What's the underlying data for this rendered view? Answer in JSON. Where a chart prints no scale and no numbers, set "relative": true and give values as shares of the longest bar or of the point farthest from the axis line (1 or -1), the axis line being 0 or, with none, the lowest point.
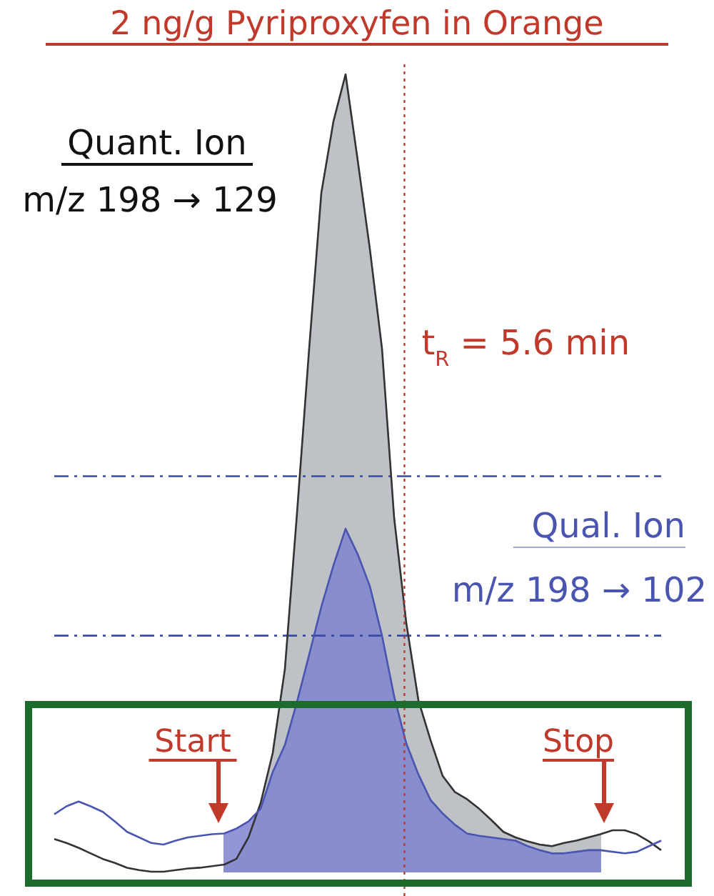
{
  "chart_data": {
    "type": "line",
    "title": "2 ng/g Pyriproxyfen in Orange",
    "relative": true,
    "categories": [
      null,
      null,
      null,
      null,
      null,
      null,
      null,
      null,
      null,
      null,
      null,
      null,
      null,
      null,
      null,
      null,
      null,
      null,
      null,
      null,
      null,
      null,
      null,
      null,
      null,
      null,
      null,
      null,
      null,
      null,
      null,
      null,
      null,
      null,
      null,
      null,
      null,
      null,
      null,
      null,
      null,
      null,
      null,
      null,
      null,
      null,
      null,
      null,
      null,
      null,
      null
    ],
    "series": [
      {
        "type": "area",
        "color": "#b3b7bb",
        "values": [
          null,
          null,
          null,
          null,
          null,
          null,
          null,
          null,
          null,
          null,
          null,
          null,
          null,
          null,
          0.009,
          0.016,
          0.043,
          0.086,
          0.149,
          0.254,
          0.45,
          0.656,
          0.851,
          0.941,
          1,
          0.892,
          0.781,
          0.656,
          0.444,
          0.312,
          0.215,
          0.165,
          0.12,
          0.1,
          0.091,
          0.079,
          0.065,
          0.05,
          0.043,
          0.038,
          0.034,
          0.032,
          0.036,
          0.039,
          0.043,
          0.047,
          null,
          null,
          null,
          null,
          null
        ]
      },
      {
        "type": "area",
        "color": "#7f84cf",
        "values": [
          null,
          null,
          null,
          null,
          null,
          null,
          null,
          null,
          null,
          null,
          null,
          null,
          null,
          null,
          0.048,
          0.054,
          0.063,
          0.079,
          0.125,
          0.159,
          0.213,
          0.272,
          0.332,
          0.384,
          0.43,
          0.398,
          0.358,
          0.296,
          0.22,
          0.161,
          0.122,
          0.09,
          0.073,
          0.059,
          0.048,
          0.045,
          0.043,
          0.041,
          0.039,
          0.032,
          0.027,
          0.023,
          0.023,
          0.025,
          0.027,
          0.027,
          null,
          null,
          null,
          null,
          null
        ]
      },
      {
        "color": "#3a4aa0",
        "line_style": "dashed",
        "values": [
          0.496,
          0.496,
          0.496,
          0.496,
          0.496,
          0.496,
          0.496,
          0.496,
          0.496,
          0.496,
          0.496,
          0.496,
          0.496,
          0.496,
          0.496,
          0.496,
          0.496,
          0.496,
          0.496,
          0.496,
          0.496,
          0.496,
          0.496,
          0.496,
          0.496,
          0.496,
          0.496,
          0.496,
          0.496,
          0.496,
          0.496,
          0.496,
          0.496,
          0.496,
          0.496,
          0.496,
          0.496,
          0.496,
          0.496,
          0.496,
          0.496,
          0.496,
          0.496,
          0.496,
          0.496,
          0.496,
          0.496,
          0.496,
          0.496,
          0.496,
          0.496
        ]
      },
      {
        "color": "#3a4aa0",
        "line_style": "dashed",
        "values": [
          0.296,
          0.296,
          0.296,
          0.296,
          0.296,
          0.296,
          0.296,
          0.296,
          0.296,
          0.296,
          0.296,
          0.296,
          0.296,
          0.296,
          0.296,
          0.296,
          0.296,
          0.296,
          0.296,
          0.296,
          0.296,
          0.296,
          0.296,
          0.296,
          0.296,
          0.296,
          0.296,
          0.296,
          0.296,
          0.296,
          0.296,
          0.296,
          0.296,
          0.296,
          0.296,
          0.296,
          0.296,
          0.296,
          0.296,
          0.296,
          0.296,
          0.296,
          0.296,
          0.296,
          0.296,
          0.296,
          0.296,
          0.296,
          0.296,
          0.296,
          0.296
        ]
      },
      {
        "name": "Quant. Ion",
        "color": "#333333",
        "values": [
          0.041,
          0.036,
          0.03,
          0.023,
          0.016,
          0.011,
          0.005,
          0.002,
          0,
          0,
          0.002,
          0.004,
          0.005,
          0.007,
          0.009,
          0.016,
          0.043,
          0.086,
          0.149,
          0.254,
          0.45,
          0.656,
          0.851,
          0.941,
          1,
          0.892,
          0.781,
          0.656,
          0.444,
          0.312,
          0.215,
          0.165,
          0.12,
          0.1,
          0.091,
          0.079,
          0.065,
          0.05,
          0.043,
          0.038,
          0.034,
          0.032,
          0.036,
          0.039,
          0.043,
          0.047,
          0.052,
          0.052,
          0.047,
          0.038,
          0.027
        ]
      },
      {
        "name": "Qual. Ion",
        "color": "#4a55b0",
        "values": [
          0.072,
          0.082,
          0.088,
          0.082,
          0.075,
          0.063,
          0.05,
          0.043,
          0.036,
          0.034,
          0.039,
          0.043,
          0.045,
          0.047,
          0.048,
          0.054,
          0.063,
          0.079,
          0.125,
          0.159,
          0.213,
          0.272,
          0.332,
          0.384,
          0.43,
          0.398,
          0.358,
          0.296,
          0.22,
          0.161,
          0.122,
          0.09,
          0.073,
          0.059,
          0.048,
          0.045,
          0.043,
          0.041,
          0.039,
          0.032,
          0.027,
          0.023,
          0.023,
          0.025,
          0.027,
          0.027,
          0.025,
          0.023,
          0.025,
          0.032,
          0.039
        ]
      }
    ],
    "ref_lines": [
      {
        "axis": "x",
        "label": "t$_{R}$ = 5.6 min",
        "color": "#c0392b",
        "line_style": "dotted"
      }
    ],
    "annotations": [
      "m/z 198 → 129",
      "m/z 198 → 102",
      "Start",
      "Stop"
    ]
  }
}
